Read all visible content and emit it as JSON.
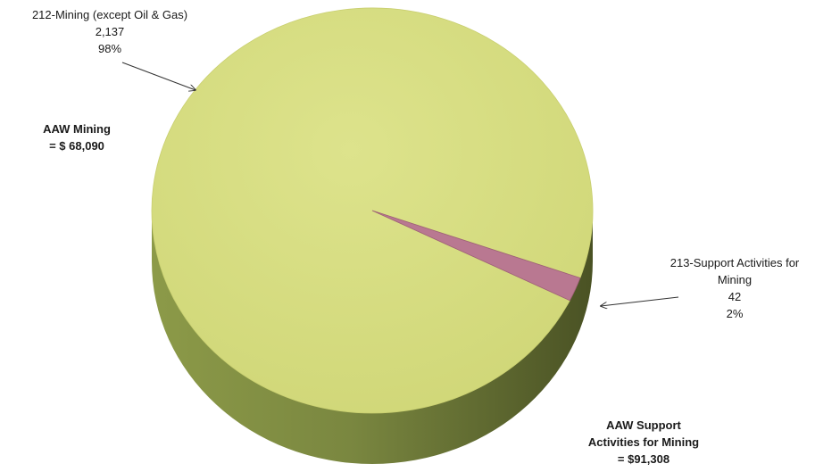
{
  "chart_data": {
    "type": "pie",
    "style": "3d",
    "categories": [
      "212-Mining (except Oil & Gas)",
      "213-Support Activities for Mining"
    ],
    "values": [
      2137,
      42
    ],
    "percent_labels": [
      "98%",
      "2%"
    ],
    "value_labels": [
      "2,137",
      "42"
    ],
    "colors": [
      "#d6dd7c",
      "#b97891"
    ],
    "legend": "none",
    "labels": {
      "mining": {
        "line1": "212-Mining (except Oil & Gas)",
        "value": "2,137",
        "percent": "98%"
      },
      "support": {
        "line1": "213-Support Activities for",
        "line2": "Mining",
        "value": "42",
        "percent": "2%"
      }
    },
    "annotations": {
      "aaw_mining": {
        "line1": "AAW Mining",
        "line2": "= $ 68,090"
      },
      "aaw_support": {
        "line1": "AAW Support",
        "line2": "Activities for Mining",
        "line3": "= $91,308"
      }
    }
  }
}
